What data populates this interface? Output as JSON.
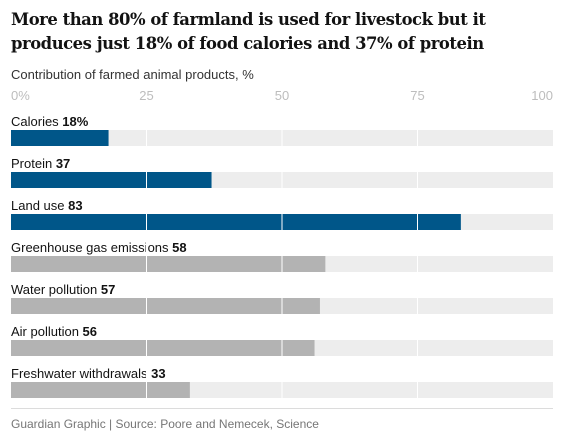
{
  "chart_data": {
    "type": "bar",
    "orientation": "horizontal",
    "title": "More than 80% of farmland is used for livestock but it produces just 18% of food calories and 37% of protein",
    "subtitle": "Contribution of farmed animal products, %",
    "xlim": [
      0,
      100
    ],
    "tick_values": [
      0,
      25,
      50,
      75,
      100
    ],
    "tick_labels": [
      "0%",
      "25",
      "50",
      "75",
      "100"
    ],
    "grid": true,
    "categories": [
      "Calories",
      "Protein",
      "Land use",
      "Greenhouse gas emissions",
      "Water pollution",
      "Air pollution",
      "Freshwater withdrawals"
    ],
    "values": [
      18,
      37,
      83,
      58,
      57,
      56,
      33
    ],
    "value_labels": [
      "18%",
      "37",
      "83",
      "58",
      "57",
      "56",
      "33"
    ],
    "bar_colors": [
      "#005689",
      "#005689",
      "#005689",
      "#b3b3b3",
      "#b3b3b3",
      "#b3b3b3",
      "#b3b3b3"
    ],
    "track_color": "#ededed",
    "gridline_color": "#ffffff"
  },
  "footer": "Guardian Graphic | Source: Poore and Nemecek, Science"
}
